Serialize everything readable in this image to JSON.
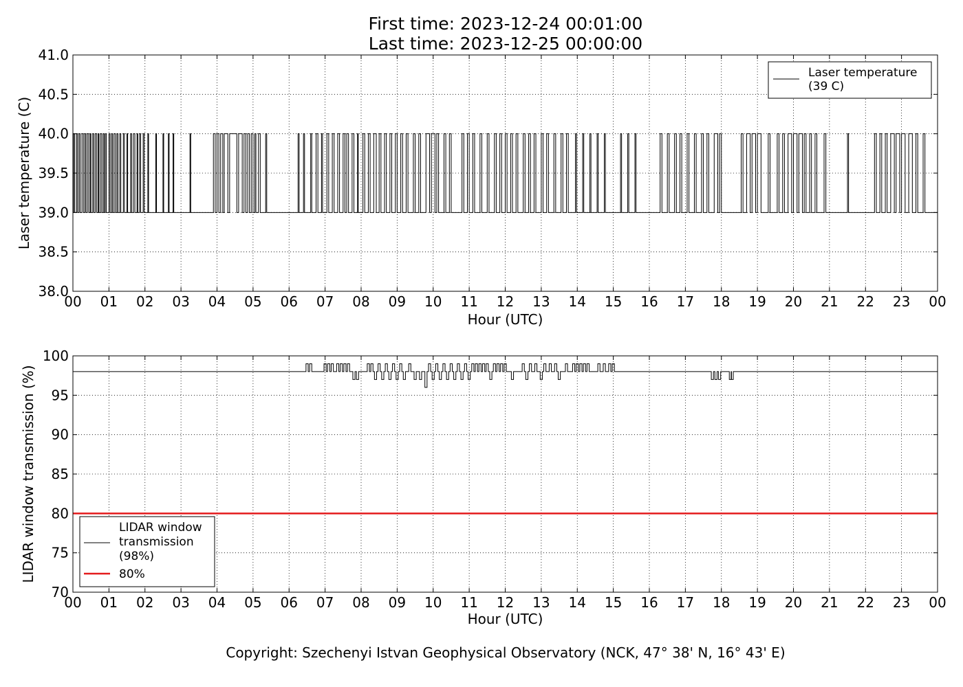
{
  "title_line1": "First time: 2023-12-24 00:01:00",
  "title_line2": "Last time: 2023-12-25 00:00:00",
  "copyright": "Copyright: Szechenyi Istvan Geophysical Observatory (NCK, 47° 38' N, 16° 43' E)",
  "colors": {
    "series": "#000000",
    "threshold": "#e41a1c",
    "grid": "#000000"
  },
  "chart_data": [
    {
      "type": "line",
      "xlabel": "Hour (UTC)",
      "ylabel": "Laser temperature (C)",
      "xlim": [
        0,
        24
      ],
      "ylim": [
        38.0,
        41.0
      ],
      "x_ticks": [
        "00",
        "01",
        "02",
        "03",
        "04",
        "05",
        "06",
        "07",
        "08",
        "09",
        "10",
        "11",
        "12",
        "13",
        "14",
        "15",
        "16",
        "17",
        "18",
        "19",
        "20",
        "21",
        "22",
        "23",
        "00"
      ],
      "y_ticks": [
        "38.0",
        "38.5",
        "39.0",
        "39.5",
        "40.0",
        "40.5",
        "41.0"
      ],
      "grid": true,
      "legend_position": "top-right",
      "series": [
        {
          "name": "Laser temperature\n(39 C)",
          "levels": [
            39.0,
            40.0
          ],
          "high_intervals_hours": [
            [
              0.02,
              0.05
            ],
            [
              0.1,
              0.13
            ],
            [
              0.17,
              0.2
            ],
            [
              0.25,
              0.29
            ],
            [
              0.33,
              0.36
            ],
            [
              0.4,
              0.44
            ],
            [
              0.48,
              0.5
            ],
            [
              0.55,
              0.58
            ],
            [
              0.62,
              0.66
            ],
            [
              0.7,
              0.72
            ],
            [
              0.76,
              0.8
            ],
            [
              0.84,
              0.87
            ],
            [
              0.9,
              0.93
            ],
            [
              1.0,
              1.03
            ],
            [
              1.07,
              1.1
            ],
            [
              1.14,
              1.18
            ],
            [
              1.22,
              1.25
            ],
            [
              1.3,
              1.33
            ],
            [
              1.4,
              1.43
            ],
            [
              1.5,
              1.52
            ],
            [
              1.6,
              1.63
            ],
            [
              1.68,
              1.72
            ],
            [
              1.78,
              1.8
            ],
            [
              1.85,
              1.88
            ],
            [
              1.95,
              1.98
            ],
            [
              2.08,
              2.1
            ],
            [
              2.3,
              2.32
            ],
            [
              2.5,
              2.52
            ],
            [
              2.65,
              2.67
            ],
            [
              2.78,
              2.8
            ],
            [
              3.25,
              3.27
            ],
            [
              3.9,
              3.95
            ],
            [
              4.0,
              4.05
            ],
            [
              4.1,
              4.16
            ],
            [
              4.2,
              4.3
            ],
            [
              4.35,
              4.55
            ],
            [
              4.6,
              4.7
            ],
            [
              4.75,
              4.8
            ],
            [
              4.85,
              4.9
            ],
            [
              4.95,
              5.0
            ],
            [
              5.05,
              5.08
            ],
            [
              5.15,
              5.2
            ],
            [
              5.35,
              5.38
            ],
            [
              6.25,
              6.28
            ],
            [
              6.4,
              6.43
            ],
            [
              6.6,
              6.63
            ],
            [
              6.75,
              6.8
            ],
            [
              6.9,
              6.93
            ],
            [
              7.05,
              7.1
            ],
            [
              7.2,
              7.25
            ],
            [
              7.35,
              7.4
            ],
            [
              7.5,
              7.55
            ],
            [
              7.6,
              7.65
            ],
            [
              7.75,
              7.8
            ],
            [
              7.9,
              7.92
            ],
            [
              8.05,
              8.1
            ],
            [
              8.2,
              8.25
            ],
            [
              8.35,
              8.42
            ],
            [
              8.5,
              8.55
            ],
            [
              8.65,
              8.7
            ],
            [
              8.8,
              8.85
            ],
            [
              8.95,
              9.0
            ],
            [
              9.1,
              9.15
            ],
            [
              9.25,
              9.3
            ],
            [
              9.45,
              9.5
            ],
            [
              9.6,
              9.65
            ],
            [
              9.8,
              9.9
            ],
            [
              9.95,
              10.05
            ],
            [
              10.1,
              10.15
            ],
            [
              10.3,
              10.35
            ],
            [
              10.45,
              10.5
            ],
            [
              10.8,
              10.85
            ],
            [
              10.95,
              11.0
            ],
            [
              11.1,
              11.15
            ],
            [
              11.3,
              11.35
            ],
            [
              11.5,
              11.55
            ],
            [
              11.7,
              11.75
            ],
            [
              11.85,
              11.9
            ],
            [
              12.0,
              12.05
            ],
            [
              12.15,
              12.2
            ],
            [
              12.3,
              12.35
            ],
            [
              12.5,
              12.55
            ],
            [
              12.65,
              12.7
            ],
            [
              12.8,
              12.85
            ],
            [
              13.0,
              13.05
            ],
            [
              13.15,
              13.2
            ],
            [
              13.35,
              13.4
            ],
            [
              13.55,
              13.6
            ],
            [
              13.7,
              13.75
            ],
            [
              13.95,
              13.98
            ],
            [
              14.15,
              14.18
            ],
            [
              14.35,
              14.38
            ],
            [
              14.55,
              14.58
            ],
            [
              14.75,
              14.78
            ],
            [
              15.2,
              15.23
            ],
            [
              15.4,
              15.43
            ],
            [
              15.6,
              15.63
            ],
            [
              16.3,
              16.35
            ],
            [
              16.5,
              16.55
            ],
            [
              16.7,
              16.75
            ],
            [
              16.85,
              16.9
            ],
            [
              17.05,
              17.1
            ],
            [
              17.25,
              17.3
            ],
            [
              17.45,
              17.5
            ],
            [
              17.6,
              17.65
            ],
            [
              17.8,
              17.9
            ],
            [
              17.95,
              18.0
            ],
            [
              18.55,
              18.6
            ],
            [
              18.7,
              18.8
            ],
            [
              18.85,
              18.95
            ],
            [
              19.0,
              19.1
            ],
            [
              19.3,
              19.35
            ],
            [
              19.55,
              19.6
            ],
            [
              19.7,
              19.75
            ],
            [
              19.85,
              19.95
            ],
            [
              20.0,
              20.1
            ],
            [
              20.15,
              20.25
            ],
            [
              20.3,
              20.35
            ],
            [
              20.45,
              20.5
            ],
            [
              20.6,
              20.65
            ],
            [
              20.85,
              20.9
            ],
            [
              21.5,
              21.53
            ],
            [
              22.25,
              22.3
            ],
            [
              22.4,
              22.45
            ],
            [
              22.55,
              22.6
            ],
            [
              22.7,
              22.8
            ],
            [
              22.85,
              22.95
            ],
            [
              23.0,
              23.1
            ],
            [
              23.2,
              23.3
            ],
            [
              23.4,
              23.45
            ],
            [
              23.6,
              23.65
            ]
          ]
        }
      ]
    },
    {
      "type": "line",
      "xlabel": "Hour (UTC)",
      "ylabel": "LIDAR window transmission (%)",
      "xlim": [
        0,
        24
      ],
      "ylim": [
        70,
        100
      ],
      "x_ticks": [
        "00",
        "01",
        "02",
        "03",
        "04",
        "05",
        "06",
        "07",
        "08",
        "09",
        "10",
        "11",
        "12",
        "13",
        "14",
        "15",
        "16",
        "17",
        "18",
        "19",
        "20",
        "21",
        "22",
        "23",
        "00"
      ],
      "y_ticks": [
        "70",
        "75",
        "80",
        "85",
        "90",
        "95",
        "100"
      ],
      "grid": true,
      "legend_position": "bottom-left",
      "series": [
        {
          "name": "LIDAR window\ntransmission\n(98%)",
          "baseline": 98,
          "excursions": [
            [
              6.5,
              99
            ],
            [
              6.6,
              99
            ],
            [
              7.0,
              99
            ],
            [
              7.1,
              99
            ],
            [
              7.2,
              99
            ],
            [
              7.35,
              99
            ],
            [
              7.45,
              99
            ],
            [
              7.55,
              99
            ],
            [
              7.65,
              99
            ],
            [
              7.8,
              97
            ],
            [
              7.9,
              97
            ],
            [
              8.2,
              99
            ],
            [
              8.3,
              99
            ],
            [
              8.4,
              97
            ],
            [
              8.5,
              99
            ],
            [
              8.6,
              97
            ],
            [
              8.7,
              99
            ],
            [
              8.8,
              97
            ],
            [
              8.9,
              99
            ],
            [
              9.0,
              97
            ],
            [
              9.1,
              99
            ],
            [
              9.2,
              97
            ],
            [
              9.35,
              99
            ],
            [
              9.5,
              97
            ],
            [
              9.65,
              97
            ],
            [
              9.8,
              96
            ],
            [
              9.9,
              99
            ],
            [
              10.0,
              97
            ],
            [
              10.1,
              99
            ],
            [
              10.2,
              97
            ],
            [
              10.3,
              99
            ],
            [
              10.4,
              97
            ],
            [
              10.5,
              99
            ],
            [
              10.6,
              97
            ],
            [
              10.7,
              99
            ],
            [
              10.8,
              97
            ],
            [
              10.9,
              99
            ],
            [
              11.0,
              97
            ],
            [
              11.1,
              99
            ],
            [
              11.2,
              99
            ],
            [
              11.3,
              99
            ],
            [
              11.4,
              99
            ],
            [
              11.5,
              99
            ],
            [
              11.6,
              97
            ],
            [
              11.7,
              99
            ],
            [
              11.8,
              99
            ],
            [
              11.9,
              99
            ],
            [
              12.0,
              99
            ],
            [
              12.2,
              97
            ],
            [
              12.5,
              99
            ],
            [
              12.6,
              97
            ],
            [
              12.7,
              99
            ],
            [
              12.85,
              99
            ],
            [
              13.0,
              97
            ],
            [
              13.1,
              99
            ],
            [
              13.25,
              99
            ],
            [
              13.4,
              99
            ],
            [
              13.5,
              97
            ],
            [
              13.7,
              99
            ],
            [
              13.9,
              99
            ],
            [
              14.0,
              99
            ],
            [
              14.1,
              99
            ],
            [
              14.2,
              99
            ],
            [
              14.3,
              99
            ],
            [
              14.6,
              99
            ],
            [
              14.75,
              99
            ],
            [
              14.9,
              99
            ],
            [
              15.0,
              99
            ],
            [
              17.75,
              97
            ],
            [
              17.85,
              97
            ],
            [
              17.95,
              97
            ],
            [
              18.25,
              97
            ],
            [
              18.3,
              97
            ]
          ]
        },
        {
          "name": "80%",
          "constant": 80
        }
      ]
    }
  ]
}
